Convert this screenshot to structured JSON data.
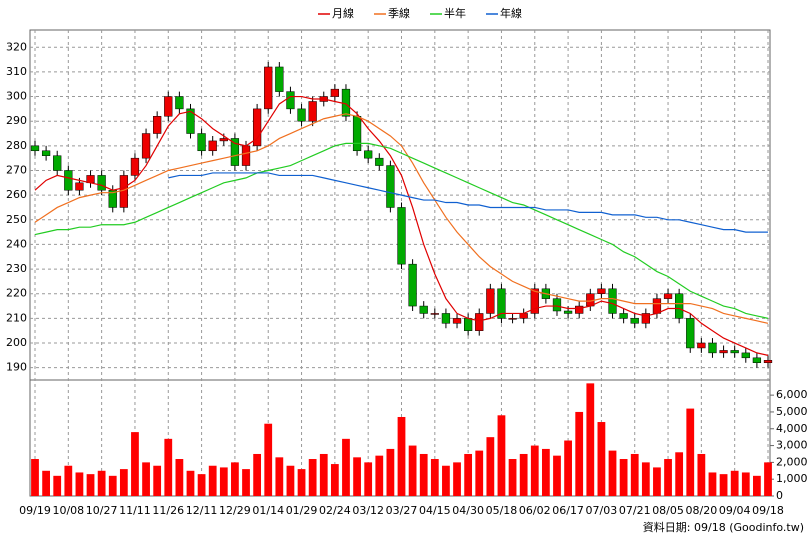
{
  "chart_data": [
    {
      "type": "candlestick",
      "legend": [
        "月線",
        "季線",
        "半年",
        "年線"
      ],
      "categories": [
        "09/19",
        null,
        null,
        "10/08",
        null,
        null,
        "10/27",
        null,
        null,
        "11/11",
        null,
        null,
        "11/26",
        null,
        null,
        "12/11",
        null,
        null,
        "12/29",
        null,
        null,
        "01/14",
        null,
        null,
        "01/29",
        null,
        null,
        "02/24",
        null,
        null,
        "03/12",
        null,
        null,
        "03/27",
        null,
        null,
        "04/15",
        null,
        null,
        "04/30",
        null,
        null,
        "05/18",
        null,
        null,
        "06/02",
        null,
        null,
        "06/17",
        null,
        null,
        "07/03",
        null,
        null,
        "07/21",
        null,
        null,
        "08/05",
        null,
        null,
        "08/20",
        null,
        null,
        "09/04",
        null,
        null,
        "09/18"
      ],
      "open": [
        280,
        278,
        276,
        270,
        262,
        265,
        268,
        262,
        255,
        268,
        275,
        285,
        292,
        300,
        295,
        285,
        278,
        282,
        283,
        272,
        280,
        295,
        312,
        302,
        295,
        290,
        298,
        300,
        303,
        292,
        278,
        275,
        272,
        255,
        232,
        215,
        212,
        212,
        208,
        210,
        205,
        212,
        222,
        210,
        210,
        212,
        222,
        218,
        213,
        212,
        215,
        220,
        222,
        212,
        210,
        208,
        212,
        218,
        220,
        210,
        198,
        200,
        196,
        197,
        196,
        194,
        192
      ],
      "high": [
        282,
        280,
        278,
        272,
        267,
        270,
        270,
        264,
        270,
        277,
        287,
        294,
        302,
        302,
        297,
        287,
        284,
        285,
        285,
        282,
        297,
        314,
        314,
        304,
        297,
        300,
        302,
        305,
        305,
        294,
        280,
        277,
        274,
        257,
        234,
        217,
        214,
        214,
        212,
        212,
        214,
        224,
        224,
        212,
        214,
        224,
        224,
        220,
        215,
        217,
        222,
        224,
        224,
        214,
        212,
        214,
        220,
        222,
        222,
        212,
        202,
        202,
        199,
        199,
        198,
        196,
        195
      ],
      "low": [
        276,
        274,
        268,
        260,
        260,
        263,
        260,
        253,
        253,
        266,
        273,
        283,
        290,
        293,
        283,
        276,
        276,
        280,
        270,
        270,
        278,
        293,
        300,
        293,
        288,
        288,
        296,
        298,
        290,
        276,
        273,
        270,
        253,
        230,
        213,
        210,
        210,
        206,
        206,
        203,
        203,
        210,
        208,
        208,
        208,
        210,
        216,
        211,
        210,
        210,
        213,
        218,
        210,
        208,
        206,
        206,
        210,
        216,
        208,
        196,
        196,
        194,
        194,
        194,
        192,
        190,
        190
      ],
      "close": [
        278,
        276,
        270,
        262,
        265,
        268,
        262,
        255,
        268,
        275,
        285,
        292,
        300,
        295,
        285,
        278,
        282,
        283,
        272,
        280,
        295,
        312,
        302,
        295,
        290,
        298,
        300,
        303,
        292,
        278,
        275,
        272,
        255,
        232,
        215,
        212,
        212,
        208,
        210,
        205,
        212,
        222,
        210,
        210,
        212,
        222,
        218,
        213,
        212,
        215,
        220,
        222,
        212,
        210,
        208,
        212,
        218,
        220,
        210,
        198,
        200,
        196,
        197,
        196,
        194,
        192,
        193
      ],
      "up_color": "#ee0000",
      "down_color": "#00aa00",
      "series": [
        {
          "name": "月線",
          "color": "#e00000",
          "values": [
            262,
            266,
            268,
            267,
            266,
            265,
            264,
            262,
            263,
            266,
            272,
            280,
            288,
            293,
            294,
            291,
            287,
            284,
            281,
            280,
            283,
            290,
            297,
            300,
            300,
            299,
            299,
            298,
            297,
            293,
            287,
            282,
            276,
            268,
            255,
            240,
            228,
            218,
            212,
            210,
            209,
            210,
            212,
            212,
            212,
            214,
            215,
            215,
            214,
            214,
            215,
            217,
            216,
            214,
            212,
            211,
            212,
            214,
            214,
            212,
            208,
            205,
            202,
            200,
            198,
            196,
            195
          ]
        },
        {
          "name": "季線",
          "color": "#f07020",
          "values": [
            249,
            252,
            255,
            257,
            259,
            260,
            261,
            261,
            262,
            264,
            266,
            268,
            270,
            271,
            272,
            273,
            274,
            275,
            276,
            277,
            278,
            280,
            283,
            285,
            287,
            289,
            291,
            292,
            293,
            292,
            290,
            287,
            284,
            280,
            273,
            265,
            258,
            251,
            245,
            240,
            235,
            231,
            228,
            225,
            223,
            221,
            220,
            219,
            218,
            217,
            217,
            218,
            218,
            217,
            216,
            216,
            216,
            216,
            216,
            216,
            215,
            214,
            212,
            211,
            210,
            209,
            208
          ]
        },
        {
          "name": "半年",
          "color": "#22cc22",
          "values": [
            244,
            245,
            246,
            246,
            247,
            247,
            248,
            248,
            248,
            249,
            251,
            253,
            255,
            257,
            259,
            261,
            263,
            265,
            266,
            267,
            269,
            270,
            271,
            272,
            274,
            276,
            278,
            280,
            281,
            281,
            281,
            280,
            279,
            277,
            275,
            273,
            271,
            269,
            267,
            265,
            263,
            261,
            259,
            257,
            256,
            254,
            252,
            250,
            248,
            246,
            244,
            242,
            240,
            237,
            235,
            232,
            229,
            227,
            224,
            221,
            219,
            217,
            215,
            214,
            212,
            211,
            210
          ]
        },
        {
          "name": "年線",
          "color": "#1060d0",
          "values": [
            null,
            null,
            null,
            null,
            null,
            null,
            null,
            null,
            null,
            null,
            null,
            null,
            267,
            268,
            268,
            268,
            269,
            269,
            269,
            269,
            269,
            269,
            268,
            268,
            268,
            268,
            267,
            266,
            265,
            264,
            263,
            262,
            261,
            260,
            259,
            258,
            258,
            257,
            257,
            256,
            256,
            255,
            255,
            255,
            255,
            255,
            254,
            254,
            254,
            253,
            253,
            253,
            252,
            252,
            252,
            251,
            251,
            250,
            250,
            249,
            248,
            247,
            246,
            246,
            245,
            245,
            245
          ]
        }
      ],
      "ylim": [
        185,
        327
      ],
      "yticks": [
        190,
        200,
        210,
        220,
        230,
        240,
        250,
        260,
        270,
        280,
        290,
        300,
        310,
        320
      ],
      "grid": true
    },
    {
      "type": "bar",
      "color": "#ff0000",
      "values": [
        2200,
        1500,
        1200,
        1800,
        1400,
        1300,
        1500,
        1200,
        1600,
        3800,
        2000,
        1800,
        3400,
        2200,
        1500,
        1300,
        1800,
        1700,
        2000,
        1600,
        2500,
        4300,
        2300,
        1800,
        1600,
        2200,
        2500,
        1900,
        3400,
        2300,
        2000,
        2400,
        2800,
        4700,
        3000,
        2500,
        2200,
        1800,
        2000,
        2500,
        2700,
        3500,
        4800,
        2200,
        2500,
        3000,
        2800,
        2400,
        3300,
        5000,
        6700,
        4400,
        2700,
        2200,
        2500,
        2000,
        1700,
        2200,
        2600,
        5200,
        2500,
        1400,
        1300,
        1500,
        1400,
        1200,
        2000
      ],
      "ylim": [
        0,
        6900
      ],
      "yticks": [
        0,
        {
          "value": 1000,
          "label": "1,000"
        },
        {
          "value": 2000,
          "label": "2,000"
        },
        {
          "value": 3000,
          "label": "3,000"
        },
        {
          "value": 4000,
          "label": "4,000"
        },
        {
          "value": 5000,
          "label": "5,000"
        },
        {
          "value": 6000,
          "label": "6,000"
        }
      ]
    }
  ],
  "footer": "資料日期: 09/18 (Goodinfo.tw)"
}
